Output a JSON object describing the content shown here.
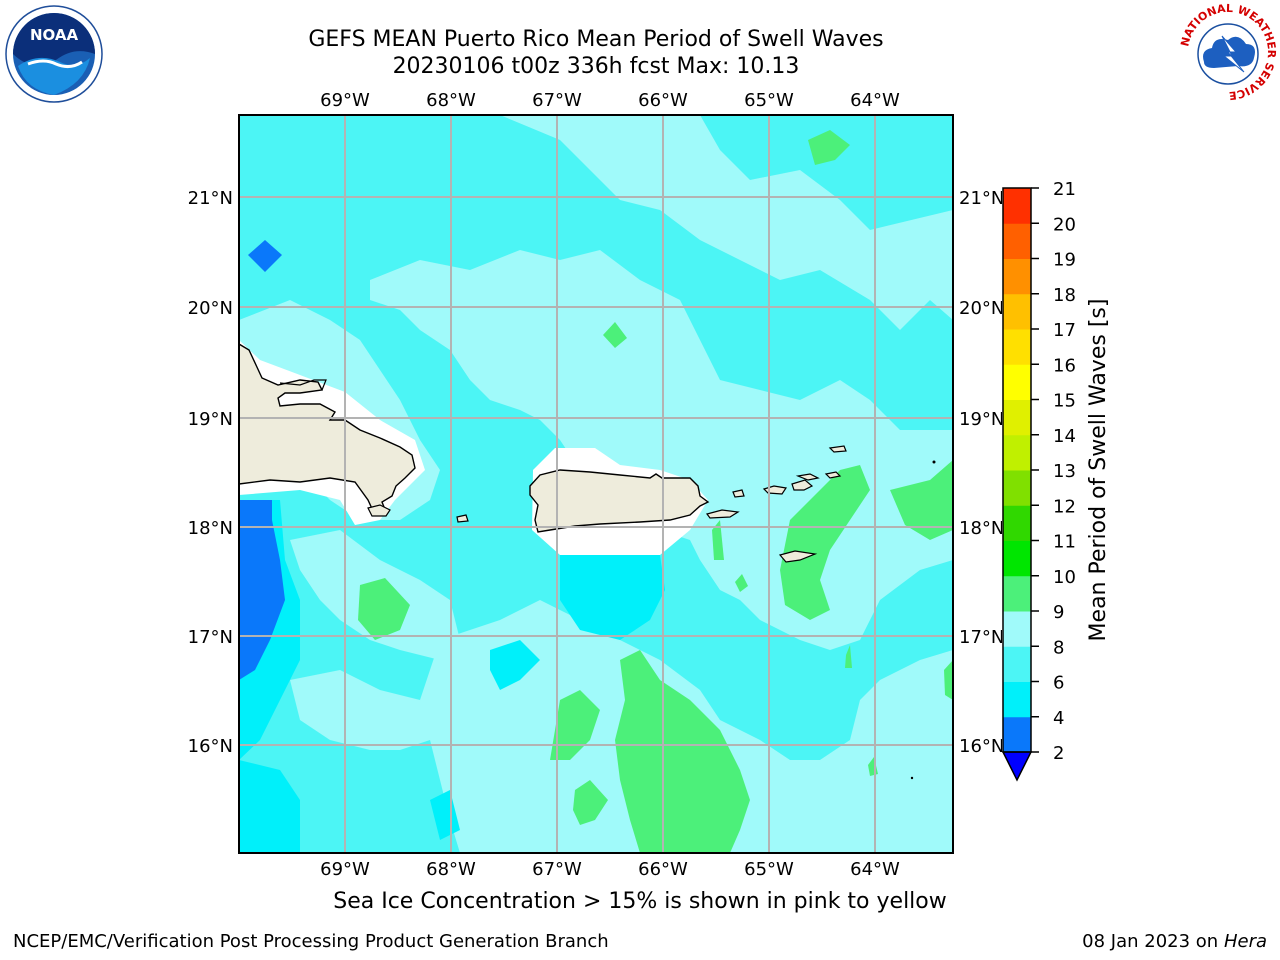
{
  "title": {
    "line1": "GEFS MEAN Puerto Rico Mean Period of Swell Waves",
    "line2": "20230106 t00z 336h fcst   Max: 10.13"
  },
  "map": {
    "lon_ticks": [
      "69°W",
      "68°W",
      "67°W",
      "66°W",
      "65°W",
      "64°W"
    ],
    "lat_ticks": [
      "21°N",
      "20°N",
      "19°N",
      "18°N",
      "17°N",
      "16°N"
    ],
    "lon_range": [
      -69.98,
      -63.25
    ],
    "lat_range": [
      15.0,
      21.75
    ],
    "grid": true,
    "land_color": "#eeecdc"
  },
  "colorbar": {
    "label": "Mean Period of Swell Waves [s]",
    "ticks": [
      "2",
      "4",
      "6",
      "8",
      "9",
      "10",
      "11",
      "12",
      "13",
      "14",
      "15",
      "16",
      "17",
      "18",
      "19",
      "20",
      "21"
    ],
    "colors": [
      "#0a78fa",
      "#00f0fa",
      "#4cf5f5",
      "#a0fafa",
      "#4cf07a",
      "#00e600",
      "#30d800",
      "#80e000",
      "#c0f000",
      "#e0f000",
      "#ffff00",
      "#ffe000",
      "#ffc000",
      "#ff9000",
      "#ff6000",
      "#ff3000",
      "#ff0000"
    ],
    "under_color": "#0000ff"
  },
  "subcaption": "Sea Ice Concentration > 15% is shown in pink to yellow",
  "footer": {
    "left": "NCEP/EMC/Verification Post Processing Product Generation Branch",
    "right_prefix": "08 Jan 2023 on ",
    "right_host": "Hera"
  },
  "logos": {
    "noaa": "NOAA",
    "nws_ring": "NATIONAL WEATHER SERVICE"
  }
}
